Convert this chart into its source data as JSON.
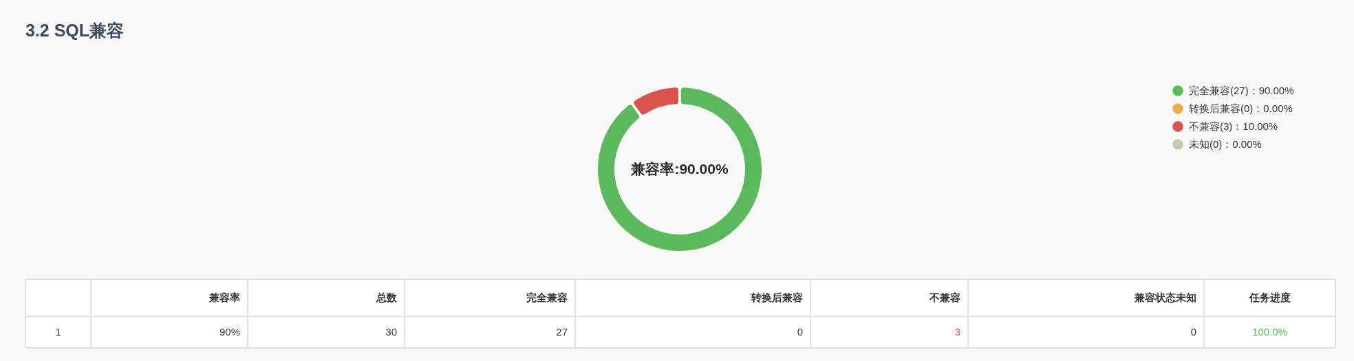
{
  "chart_data": {
    "type": "donut",
    "title": "3.2  SQL兼容",
    "categories": [
      "完全兼容(27)：90.00%",
      "转换后兼容(0)：0.00%",
      "不兼容(3)：10.00%",
      "未知(0)：0.00%"
    ],
    "values": [
      27,
      0,
      3,
      0
    ],
    "colors": [
      "#5cb85c",
      "#f0ad4e",
      "#d9534f",
      "#c9c9ab"
    ],
    "legend": "top right",
    "annotations": [
      "兼容率:90.00%",
      "兼容率",
      "总数",
      "完全兼容",
      "转换后兼容",
      "不兼容",
      "兼容状态未知",
      "任务进度",
      "1",
      "90%",
      "30",
      "27",
      "0",
      "3",
      "0",
      "100.0%"
    ]
  }
}
